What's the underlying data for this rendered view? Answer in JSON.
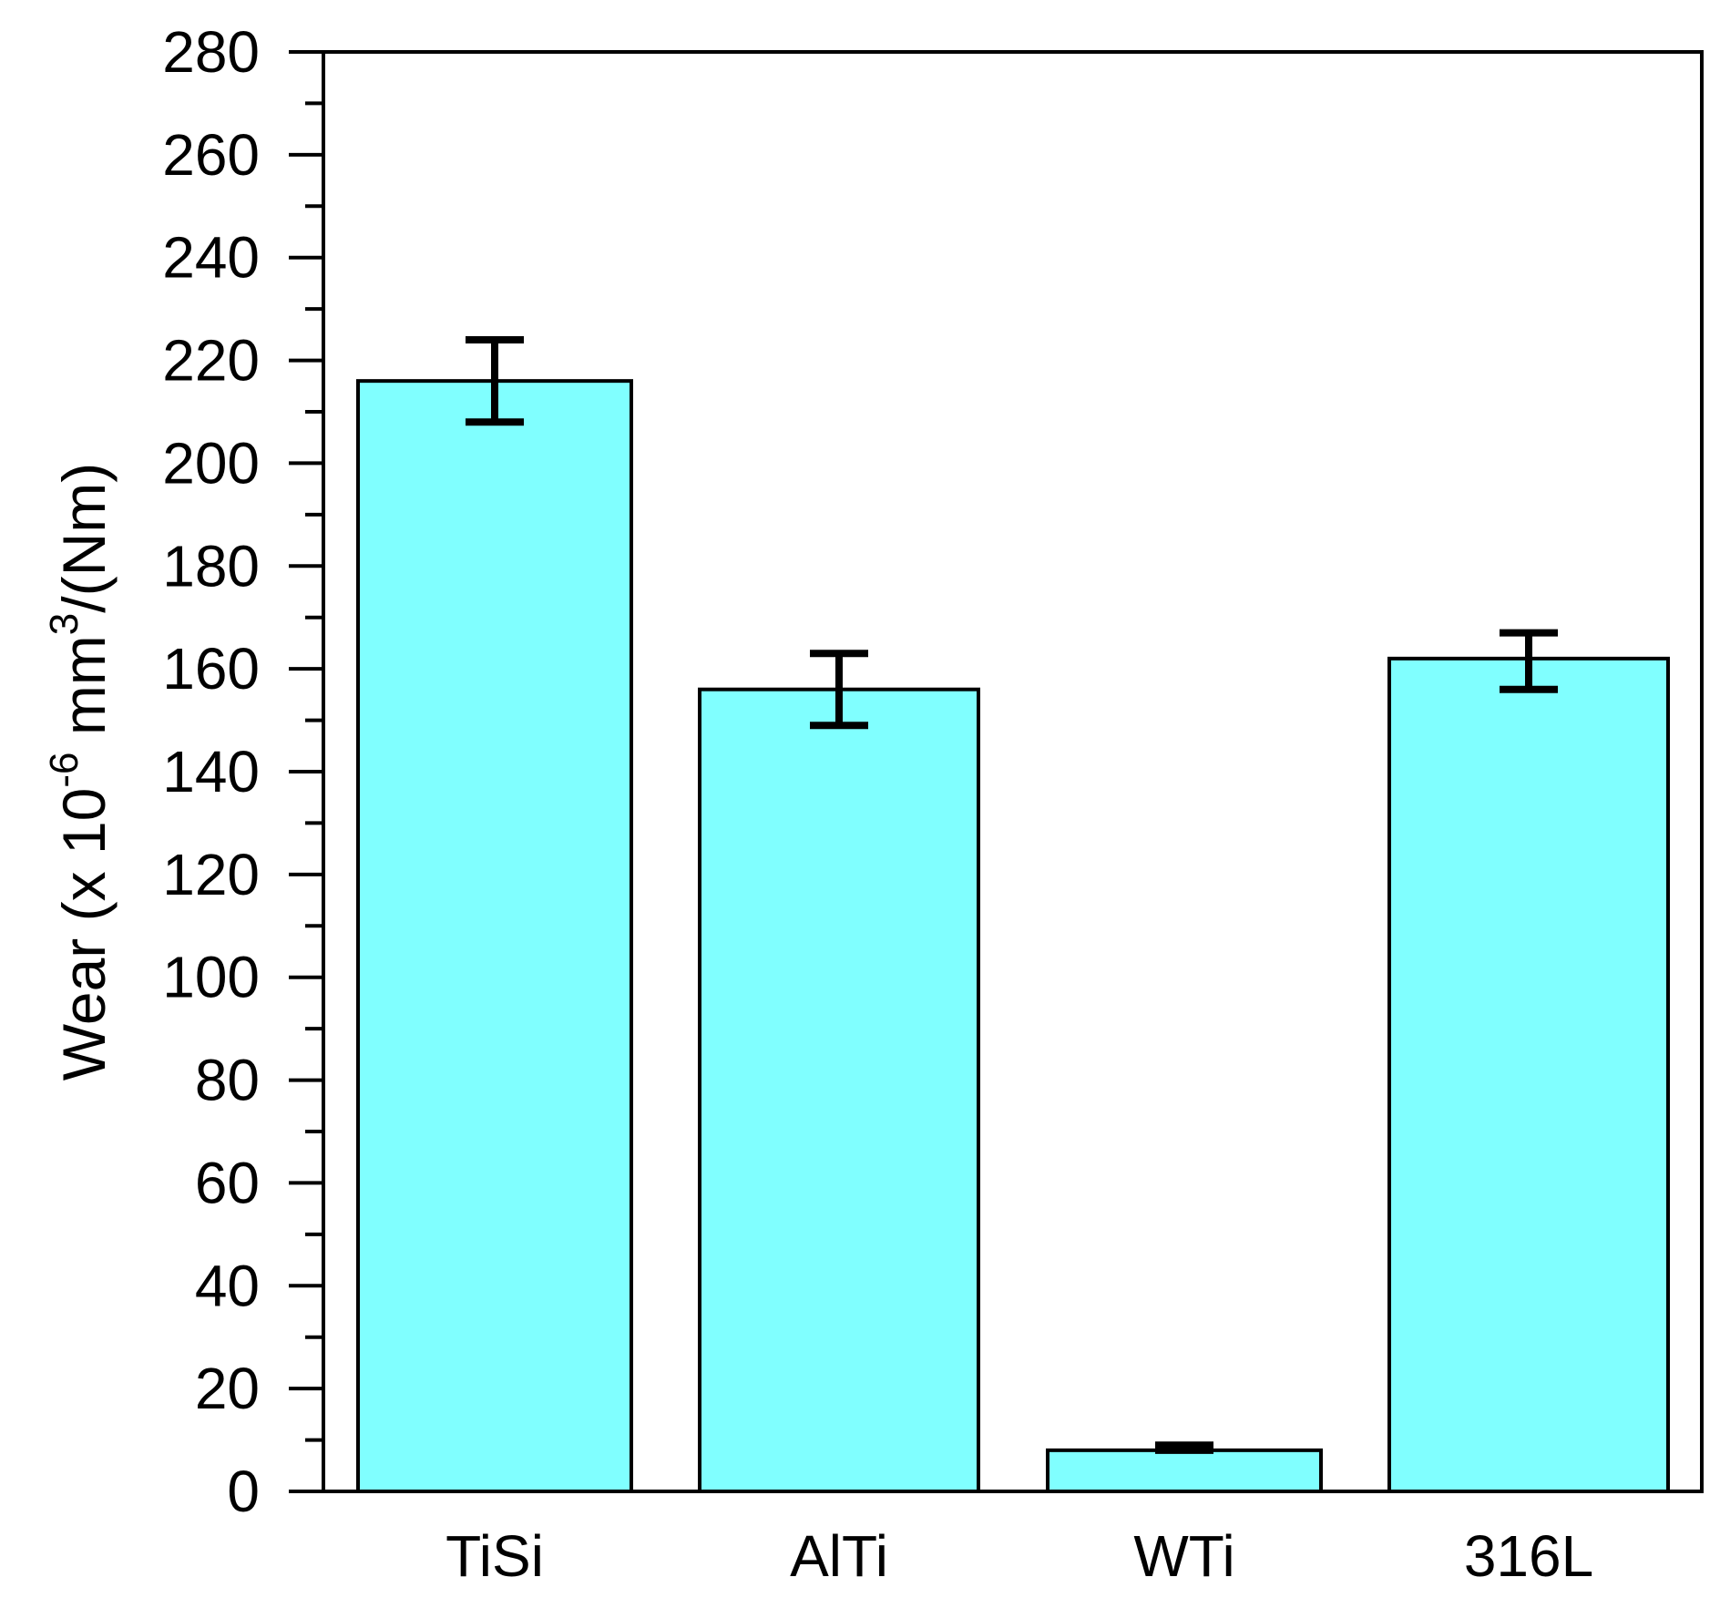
{
  "chart_data": {
    "type": "bar",
    "title": "",
    "xlabel": "",
    "ylabel": {
      "parts": [
        {
          "text": "Wear (x  10",
          "sup": false
        },
        {
          "text": "-6",
          "sup": true
        },
        {
          "text": " mm",
          "sup": false
        },
        {
          "text": "3",
          "sup": true
        },
        {
          "text": "/(Nm)",
          "sup": false
        }
      ]
    },
    "categories": [
      "TiSi",
      "AlTi",
      "WTi",
      "316L"
    ],
    "values": [
      216,
      156,
      8,
      162
    ],
    "error_low": [
      208,
      149,
      8,
      156
    ],
    "error_high": [
      224,
      163,
      9,
      167
    ],
    "ylim": [
      0,
      280
    ],
    "yticks": [
      0,
      20,
      40,
      60,
      80,
      100,
      120,
      140,
      160,
      180,
      200,
      220,
      240,
      260,
      280
    ],
    "yticks_minor_step": 10,
    "grid": false,
    "legend": "none",
    "bar_color": "#80ffff",
    "edge_color": "#000000",
    "error_color": "#000000"
  }
}
